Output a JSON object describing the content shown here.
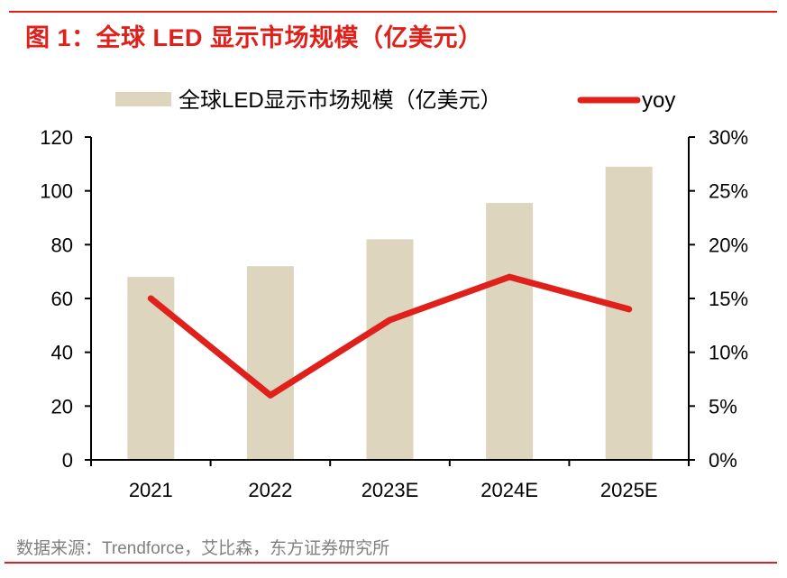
{
  "figure": {
    "title": "图 1：全球 LED 显示市场规模（亿美元）",
    "source": "数据来源：Trendforce，艾比森，东方证券研究所"
  },
  "colors": {
    "accent": "#e0211b",
    "bar": "#ded5be",
    "line": "#e0211b",
    "axis": "#000000",
    "source_text": "#808080"
  },
  "chart_data": {
    "type": "bar+line",
    "title": "图 1：全球 LED 显示市场规模（亿美元）",
    "categories": [
      "2021",
      "2022",
      "2023E",
      "2024E",
      "2025E"
    ],
    "series": [
      {
        "name": "全球LED显示市场规模（亿美元）",
        "type": "bar",
        "axis": "left",
        "values": [
          68,
          72,
          82,
          95.5,
          109
        ]
      },
      {
        "name": "yoy",
        "type": "line",
        "axis": "right",
        "values": [
          15,
          6,
          13,
          17,
          14
        ],
        "unit": "%"
      }
    ],
    "left_axis": {
      "min": 0,
      "max": 120,
      "ticks": [
        "0",
        "20",
        "40",
        "60",
        "80",
        "100",
        "120"
      ]
    },
    "right_axis": {
      "min": 0,
      "max": 30,
      "ticks": [
        "0%",
        "5%",
        "10%",
        "15%",
        "20%",
        "25%",
        "30%"
      ]
    },
    "xlabel": "",
    "ylabel": "",
    "grid": false,
    "legend": {
      "position": "top",
      "entries": [
        "全球LED显示市场规模（亿美元）",
        "yoy"
      ]
    }
  }
}
